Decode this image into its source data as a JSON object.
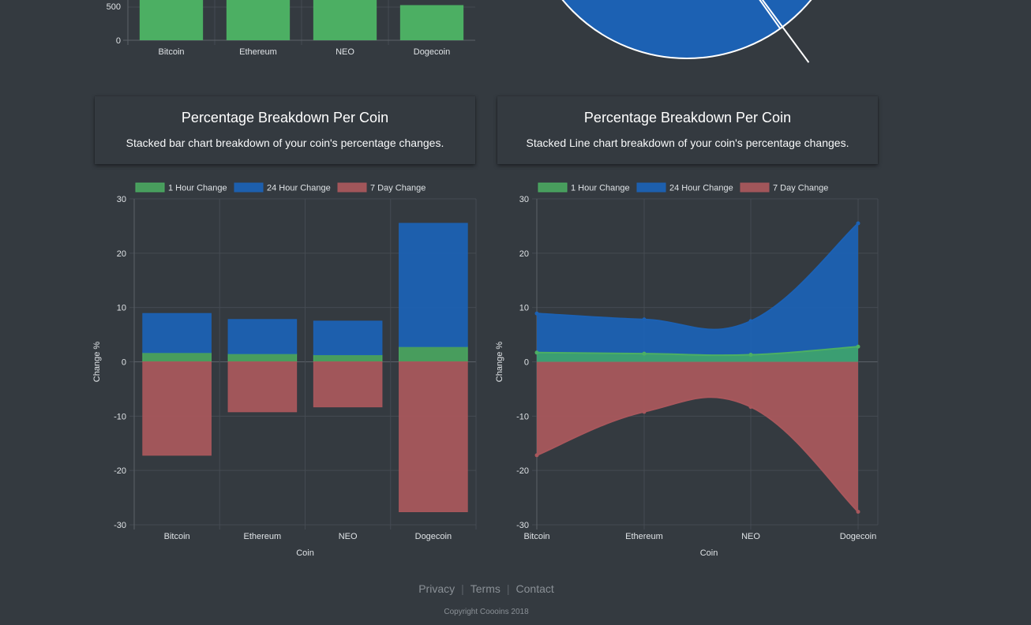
{
  "cards": [
    {
      "title": "Percentage Breakdown Per Coin",
      "subtitle": "Stacked bar chart breakdown of your coin's percentage changes."
    },
    {
      "title": "Percentage Breakdown Per Coin",
      "subtitle": "Stacked Line chart breakdown of your coin's percentage changes."
    }
  ],
  "footer": {
    "links": [
      "Privacy",
      "Terms",
      "Contact"
    ],
    "copyright": "Copyright Coooins 2018"
  },
  "colors": {
    "green": "#4caf63",
    "blue": "#1c61b3",
    "red": "#a8575c",
    "grid": "#454b52",
    "tick": "#dfe3e6"
  },
  "chart_data": [
    {
      "type": "bar",
      "categories": [
        "Bitcoin",
        "Ethereum",
        "NEO",
        "Dogecoin"
      ],
      "values": [
        null,
        null,
        null,
        530
      ],
      "yticks": [
        "500",
        "0"
      ],
      "note": "partially visible (cut off at top)"
    },
    {
      "type": "pie",
      "note": "partially visible (cut off at top)",
      "slices": []
    },
    {
      "type": "bar",
      "stacked": true,
      "categories": [
        "Bitcoin",
        "Ethereum",
        "NEO",
        "Dogecoin"
      ],
      "series": [
        {
          "name": "1 Hour Change",
          "values": [
            1.7,
            1.5,
            1.3,
            2.8
          ]
        },
        {
          "name": "24 Hour Change",
          "values": [
            7.2,
            6.3,
            6.2,
            22.7
          ]
        },
        {
          "name": "7 Day Change",
          "values": [
            -17.2,
            -9.2,
            -8.3,
            -27.6
          ]
        }
      ],
      "xlabel": "Coin",
      "ylabel": "Change %",
      "ylim": [
        -30,
        30
      ],
      "yticks": [
        30,
        20,
        10,
        0,
        -10,
        -20,
        -30
      ],
      "legend": "top"
    },
    {
      "type": "area",
      "stacked": true,
      "categories": [
        "Bitcoin",
        "Ethereum",
        "NEO",
        "Dogecoin"
      ],
      "series": [
        {
          "name": "1 Hour Change",
          "values": [
            1.7,
            1.5,
            1.3,
            2.8
          ]
        },
        {
          "name": "24 Hour Change",
          "values": [
            7.2,
            6.3,
            6.2,
            22.7
          ]
        },
        {
          "name": "7 Day Change",
          "values": [
            -17.2,
            -9.2,
            -8.3,
            -27.6
          ]
        }
      ],
      "xlabel": "Coin",
      "ylabel": "Change %",
      "ylim": [
        -30,
        30
      ],
      "yticks": [
        30,
        20,
        10,
        0,
        -10,
        -20,
        -30
      ],
      "legend": "top"
    }
  ]
}
